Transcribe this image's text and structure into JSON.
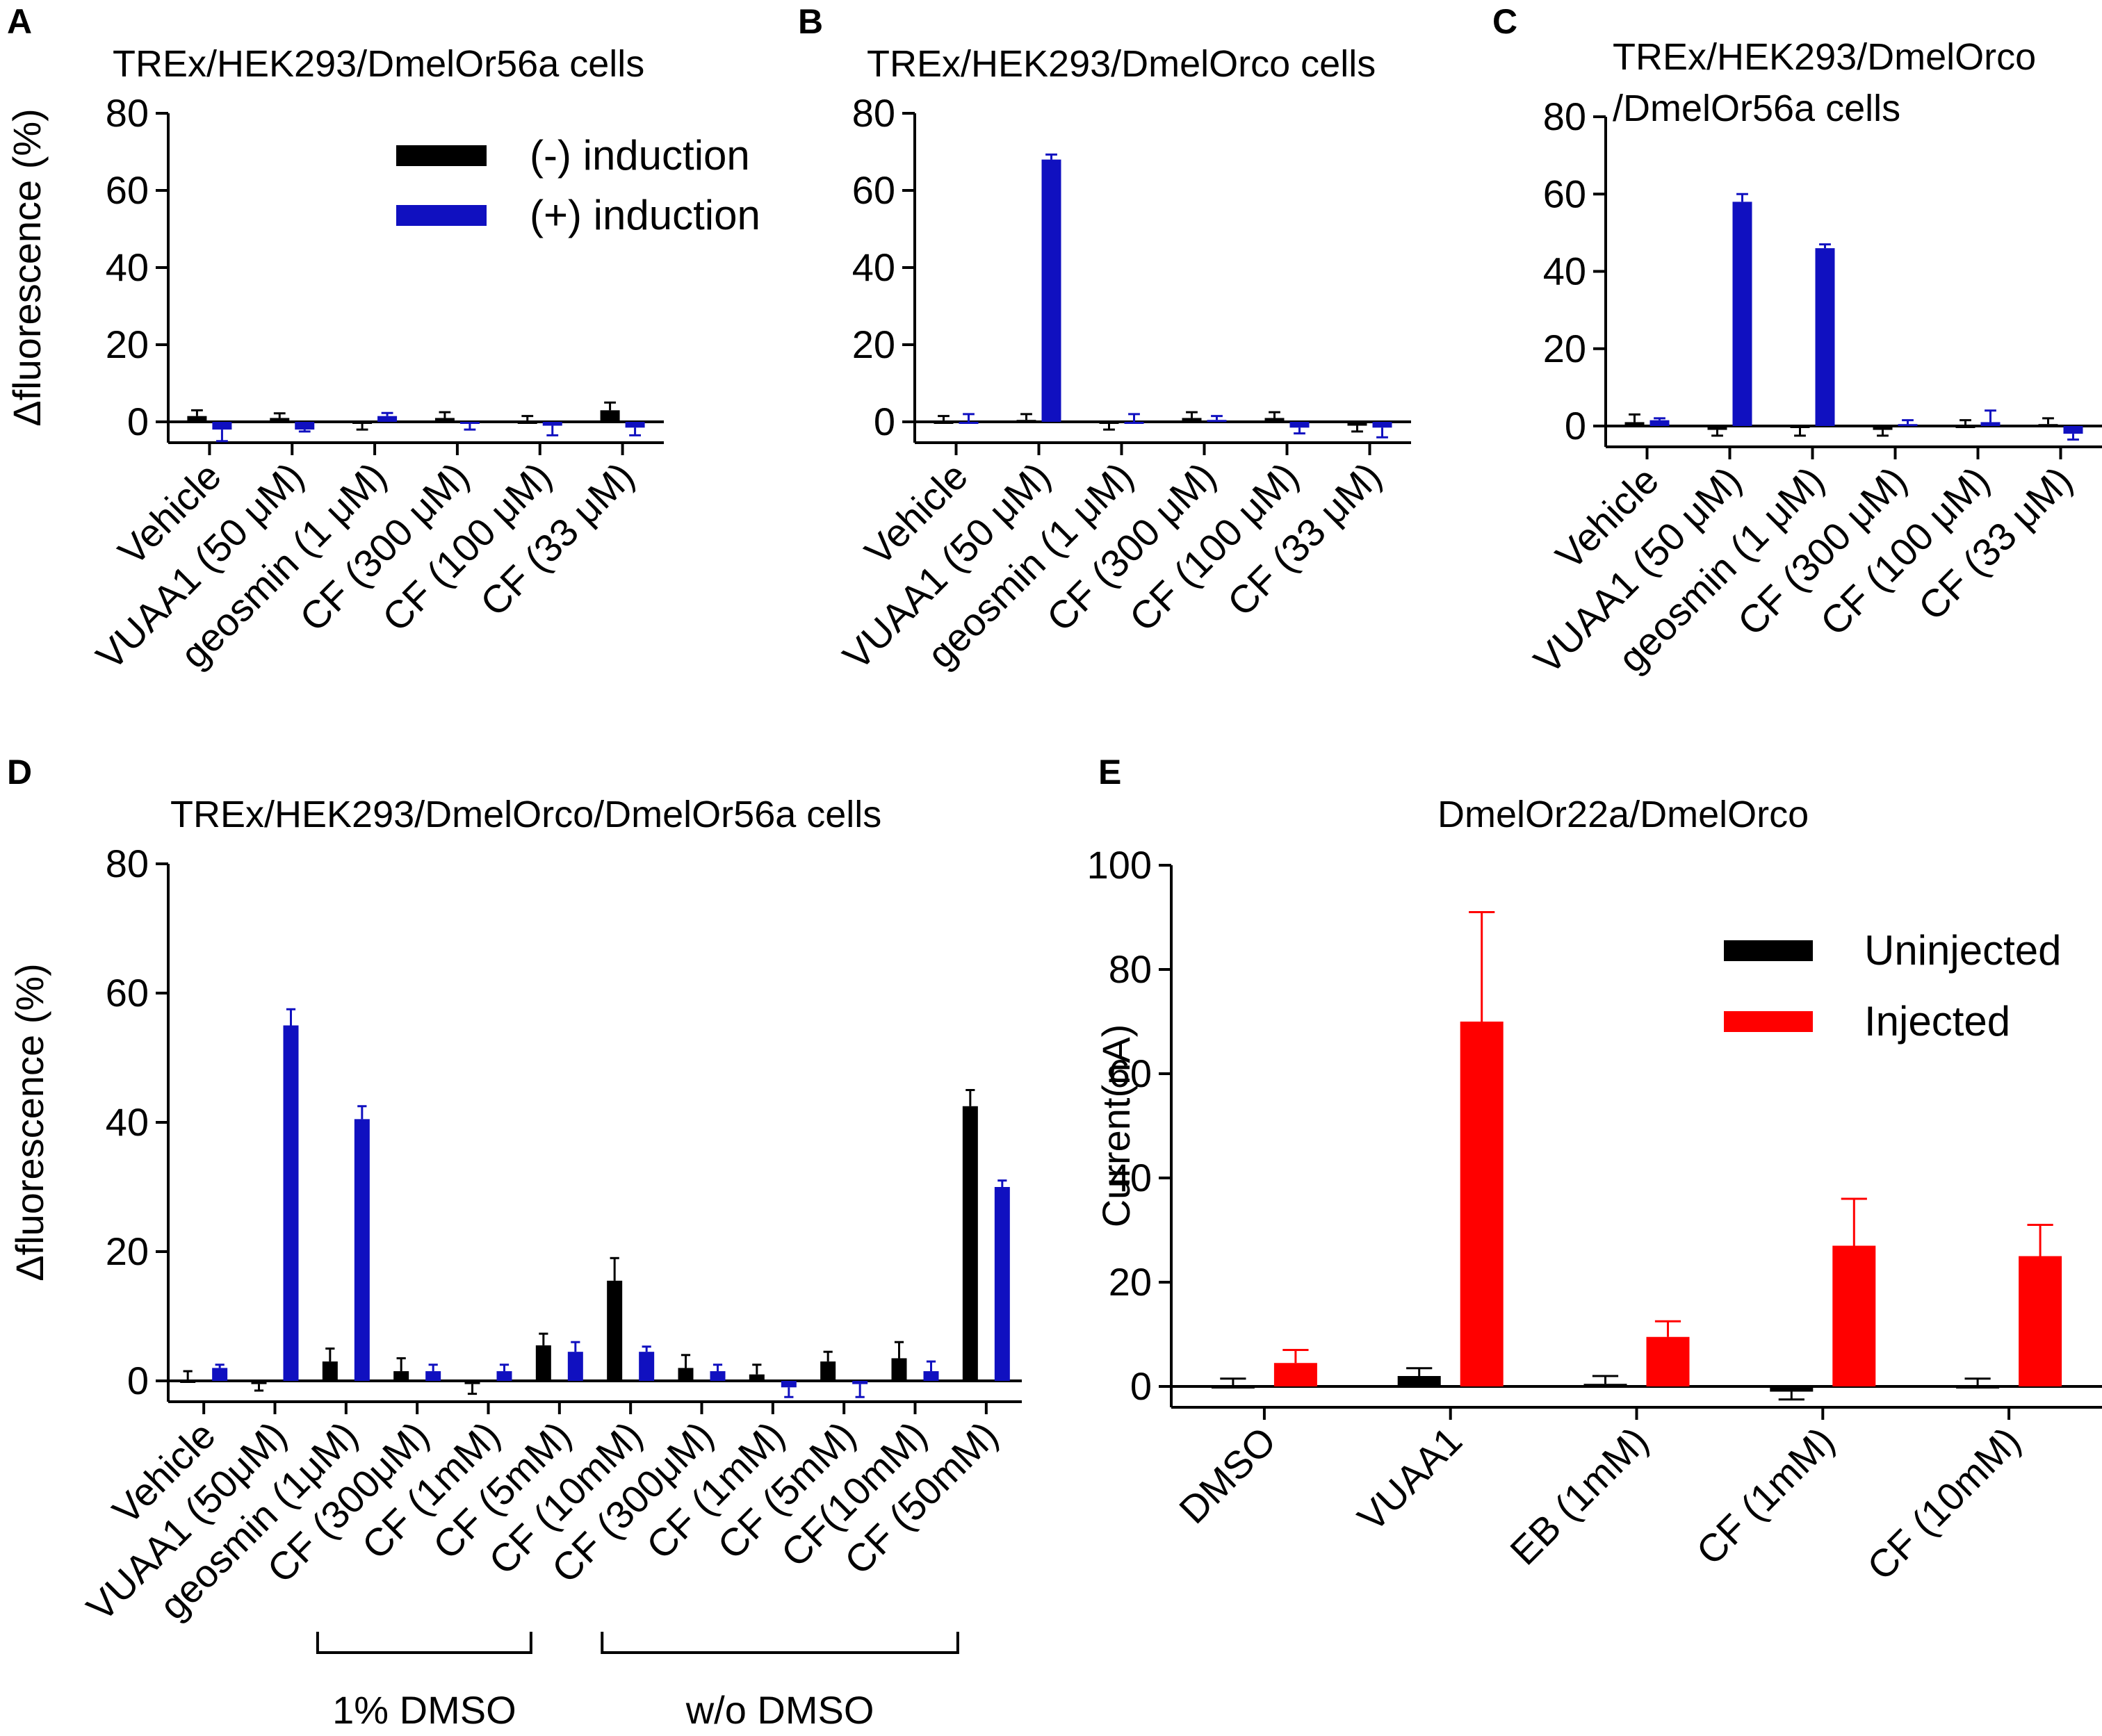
{
  "figure": {
    "colors": {
      "black": "#000000",
      "blue": "#1010c0",
      "red": "#ff0000"
    }
  },
  "chart_data": [
    {
      "id": "A",
      "letter": "A",
      "type": "bar",
      "title": [
        "TREx/HEK293/DmelOr56a cells"
      ],
      "ylabel": "Δfluorescence (%)",
      "ylim": [
        0,
        80
      ],
      "yticks": [
        0,
        20,
        40,
        60,
        80
      ],
      "categories": [
        "Vehicle",
        "VUAA1 (50 μM)",
        "geosmin (1 μM)",
        "CF (300 μM)",
        "CF (100 μM)",
        "CF (33 μM)"
      ],
      "series": [
        {
          "name": "(-) induction",
          "color": "#000000",
          "values": [
            1.5,
            1,
            -0.5,
            1,
            0,
            3
          ],
          "errors": [
            1.5,
            1.2,
            1.5,
            1.5,
            1.5,
            2
          ]
        },
        {
          "name": "(+) induction",
          "color": "#1010c0",
          "values": [
            -2,
            -2,
            1.5,
            -0.5,
            -1,
            -1.5
          ],
          "errors": [
            3,
            0.5,
            0.8,
            1.5,
            2.5,
            2
          ]
        }
      ],
      "legend": "top-right"
    },
    {
      "id": "B",
      "letter": "B",
      "type": "bar",
      "title": [
        "TREx/HEK293/DmelOrco cells"
      ],
      "ylabel": "",
      "ylim": [
        0,
        80
      ],
      "yticks": [
        0,
        20,
        40,
        60,
        80
      ],
      "categories": [
        "Vehicle",
        "VUAA1 (50 μM)",
        "geosmin (1 μM)",
        "CF (300 μM)",
        "CF (100 μM)",
        "CF (33 μM)"
      ],
      "series": [
        {
          "name": "(-) induction",
          "color": "#000000",
          "values": [
            0,
            0.5,
            -0.5,
            1,
            1,
            -1
          ],
          "errors": [
            1.5,
            1.5,
            1.5,
            1.5,
            1.5,
            1.5
          ]
        },
        {
          "name": "(+) induction",
          "color": "#1010c0",
          "values": [
            0,
            68,
            0,
            0.5,
            -1.5,
            -1.5
          ],
          "errors": [
            2,
            1.3,
            2,
            1,
            1.5,
            2.5
          ]
        }
      ],
      "legend": "none"
    },
    {
      "id": "C",
      "letter": "C",
      "type": "bar",
      "title": [
        "TREx/HEK293/DmelOrco",
        "/DmelOr56a cells"
      ],
      "ylabel": "",
      "ylim": [
        0,
        80
      ],
      "yticks": [
        0,
        20,
        40,
        60,
        80
      ],
      "categories": [
        "Vehicle",
        "VUAA1 (50 μM)",
        "geosmin (1 μM)",
        "CF (300 μM)",
        "CF (100 μM)",
        "CF (33 μM)"
      ],
      "series": [
        {
          "name": "(-) induction",
          "color": "#000000",
          "values": [
            1,
            -1,
            -0.5,
            -1,
            0,
            0.5
          ],
          "errors": [
            2,
            1.5,
            2,
            1.5,
            1.5,
            1.5
          ]
        },
        {
          "name": "(+) induction",
          "color": "#1010c0",
          "values": [
            1.5,
            58,
            46,
            0.5,
            1,
            -2
          ],
          "errors": [
            0.5,
            2,
            1,
            1,
            3,
            1.5
          ]
        }
      ],
      "legend": "none"
    },
    {
      "id": "D",
      "letter": "D",
      "type": "bar",
      "title": [
        "TREx/HEK293/DmelOrco/DmelOr56a cells"
      ],
      "ylabel": "Δfluorescence (%)",
      "ylim": [
        0,
        80
      ],
      "yticks": [
        0,
        20,
        40,
        60,
        80
      ],
      "categories": [
        "Vehicle",
        "VUAA1 (50μM)",
        "geosmin (1μM)",
        "CF (300μM)",
        "CF (1mM)",
        "CF (5mM)",
        "CF (10mM)",
        "CF (300μM)",
        "CF (1mM)",
        "CF (5mM)",
        "CF(10mM)",
        "CF (50mM)"
      ],
      "series": [
        {
          "name": "(-) induction",
          "color": "#000000",
          "values": [
            0,
            -0.5,
            3,
            1.5,
            -0.5,
            5.5,
            15.5,
            2,
            1,
            3,
            3.5,
            42.5
          ],
          "errors": [
            1.5,
            1,
            2,
            2,
            1.5,
            1.8,
            3.5,
            2,
            1.5,
            1.5,
            2.5,
            2.5
          ]
        },
        {
          "name": "(+) induction",
          "color": "#1010c0",
          "values": [
            2,
            55,
            40.5,
            1.5,
            1.5,
            4.5,
            4.5,
            1.5,
            -1,
            -0.5,
            1.5,
            30
          ],
          "errors": [
            0.5,
            2.5,
            2,
            1,
            1,
            1.5,
            0.8,
            1,
            1.5,
            2,
            1.5,
            1
          ]
        }
      ],
      "groups": [
        {
          "label": "1% DMSO",
          "from": 2,
          "to": 5
        },
        {
          "label": "w/o DMSO",
          "from": 6,
          "to": 11
        }
      ],
      "legend": "none"
    },
    {
      "id": "E",
      "letter": "E",
      "type": "bar",
      "title": [
        "DmelOr22a/DmelOrco"
      ],
      "ylabel": "Current(nA)",
      "ylim": [
        0,
        100
      ],
      "yticks": [
        0,
        20,
        40,
        60,
        80,
        100
      ],
      "categories": [
        "DMSO",
        "VUAA1",
        "EB (1mM)",
        "CF (1mM)",
        "CF (10mM)"
      ],
      "series": [
        {
          "name": "Uninjected",
          "color": "#000000",
          "values": [
            0,
            2,
            0.5,
            -1,
            0
          ],
          "errors": [
            1.5,
            1.5,
            1.5,
            1.5,
            1.5
          ]
        },
        {
          "name": "Injected",
          "color": "#ff0000",
          "values": [
            4.5,
            70,
            9.5,
            27,
            25
          ],
          "errors": [
            2.5,
            21,
            3,
            9,
            6
          ]
        }
      ],
      "legend": "top-right"
    }
  ]
}
